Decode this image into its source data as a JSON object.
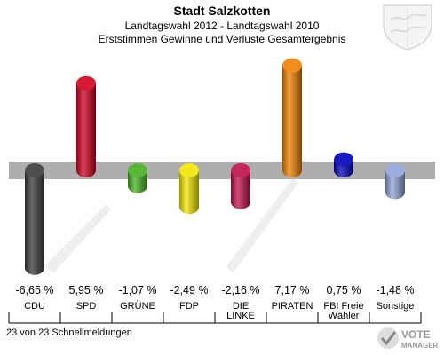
{
  "header": {
    "title": "Stadt Salzkotten",
    "subtitle": "Landtagswahl 2012 - Landtagswahl 2010",
    "description": "Erststimmen Gewinne und Verluste Gesamtergebnis"
  },
  "footer": {
    "text": "23 von 23 Schnellmeldungen"
  },
  "logo": {
    "line1": "VOTE",
    "line2": "MANAGER"
  },
  "chart_data": {
    "type": "bar",
    "title": "Stadt Salzkotten",
    "categories": [
      "CDU",
      "SPD",
      "GRÜNE",
      "FDP",
      "DIE LINKE",
      "PIRATEN",
      "FBI Freie Wähler",
      "Sonstige"
    ],
    "values": [
      -6.65,
      5.95,
      -1.07,
      -2.49,
      -2.16,
      7.17,
      0.75,
      -1.48
    ],
    "value_labels": [
      "-6,65 %",
      "5,95 %",
      "-1,07 %",
      "-2,49 %",
      "-2,16 %",
      "7,17 %",
      "0,75 %",
      "-1,48 %"
    ],
    "colors": [
      "#3a3a3a",
      "#d0001f",
      "#44b020",
      "#f2e600",
      "#c0104a",
      "#f08000",
      "#0000bb",
      "#90a4d8"
    ],
    "ylim": [
      -8,
      8
    ],
    "grid": false
  }
}
